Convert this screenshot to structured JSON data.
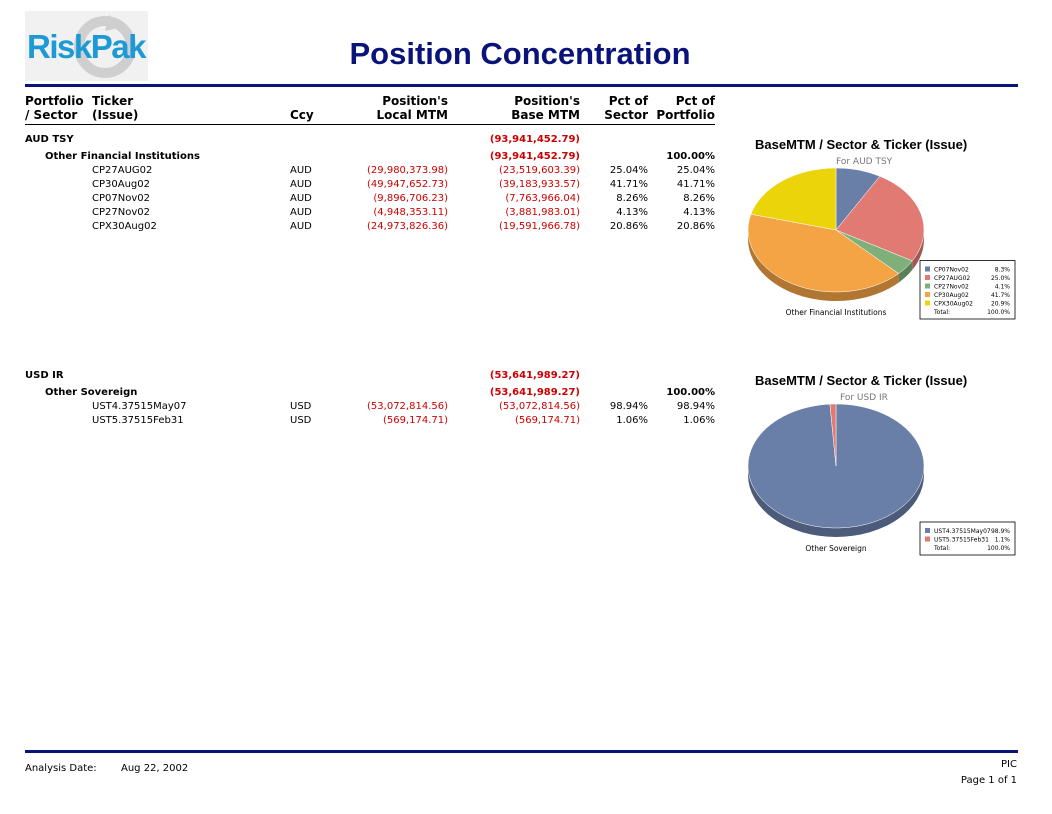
{
  "logo": {
    "text": "RiskPak"
  },
  "title": "Position Concentration",
  "headers": {
    "portfolio_1": "Portfolio",
    "portfolio_2": "/ Sector",
    "ticker_1": "Ticker",
    "ticker_2": "(Issue)",
    "ccy": "Ccy",
    "local_1": "Position's",
    "local_2": "Local MTM",
    "base_1": "Position's",
    "base_2": "Base MTM",
    "pct_sector_1": "Pct of",
    "pct_sector_2": "Sector",
    "pct_portfolio_1": "Pct of",
    "pct_portfolio_2": "Portfolio"
  },
  "groups": [
    {
      "portfolio": "AUD TSY",
      "base_total": "(93,941,452.79)",
      "sector": "Other Financial Institutions",
      "sector_base": "(93,941,452.79)",
      "sector_pct_portfolio": "100.00%",
      "rows": [
        {
          "ticker": "CP27AUG02",
          "ccy": "AUD",
          "local": "(29,980,373.98)",
          "base": "(23,519,603.39)",
          "pct_sector": "25.04%",
          "pct_portfolio": "25.04%"
        },
        {
          "ticker": "CP30Aug02",
          "ccy": "AUD",
          "local": "(49,947,652.73)",
          "base": "(39,183,933.57)",
          "pct_sector": "41.71%",
          "pct_portfolio": "41.71%"
        },
        {
          "ticker": "CP07Nov02",
          "ccy": "AUD",
          "local": "(9,896,706.23)",
          "base": "(7,763,966.04)",
          "pct_sector": "8.26%",
          "pct_portfolio": "8.26%"
        },
        {
          "ticker": "CP27Nov02",
          "ccy": "AUD",
          "local": "(4,948,353.11)",
          "base": "(3,881,983.01)",
          "pct_sector": "4.13%",
          "pct_portfolio": "4.13%"
        },
        {
          "ticker": "CPX30Aug02",
          "ccy": "AUD",
          "local": "(24,973,826.36)",
          "base": "(19,591,966.78)",
          "pct_sector": "20.86%",
          "pct_portfolio": "20.86%"
        }
      ]
    },
    {
      "portfolio": "USD IR",
      "base_total": "(53,641,989.27)",
      "sector": "Other Sovereign",
      "sector_base": "(53,641,989.27)",
      "sector_pct_portfolio": "100.00%",
      "rows": [
        {
          "ticker": "UST4.37515May07",
          "ccy": "USD",
          "local": "(53,072,814.56)",
          "base": "(53,072,814.56)",
          "pct_sector": "98.94%",
          "pct_portfolio": "98.94%"
        },
        {
          "ticker": "UST5.37515Feb31",
          "ccy": "USD",
          "local": "(569,174.71)",
          "base": "(569,174.71)",
          "pct_sector": "1.06%",
          "pct_portfolio": "1.06%"
        }
      ]
    }
  ],
  "chart_data": [
    {
      "type": "pie",
      "title": "BaseMTM / Sector & Ticker (Issue)",
      "subtitle": "For AUD TSY",
      "label": "Other Financial Institutions",
      "slices": [
        {
          "name": "CP07Nov02",
          "value": 8.3,
          "display": "8.3%",
          "color": "#6a7fa8"
        },
        {
          "name": "CP27AUG02",
          "value": 25.0,
          "display": "25.0%",
          "color": "#e07a72"
        },
        {
          "name": "CP27Nov02",
          "value": 4.1,
          "display": "4.1%",
          "color": "#7fb07a"
        },
        {
          "name": "CP30Aug02",
          "value": 41.7,
          "display": "41.7%",
          "color": "#f5a445"
        },
        {
          "name": "CPX30Aug02",
          "value": 20.9,
          "display": "20.9%",
          "color": "#ecd40a"
        }
      ],
      "total_label": "Total:",
      "total_value": "100.0%"
    },
    {
      "type": "pie",
      "title": "BaseMTM / Sector & Ticker (Issue)",
      "subtitle": "For USD IR",
      "label": "Other Sovereign",
      "slices": [
        {
          "name": "UST4.37515May07",
          "value": 98.9,
          "display": "98.9%",
          "color": "#6a7fa8"
        },
        {
          "name": "UST5.37515Feb31",
          "value": 1.1,
          "display": "1.1%",
          "color": "#e07a72"
        }
      ],
      "total_label": "Total:",
      "total_value": "100.0%"
    }
  ],
  "footer": {
    "analysis_label": "Analysis Date:",
    "analysis_date": "Aug 22, 2002",
    "code": "PIC",
    "page": "Page 1 of 1"
  },
  "colors": {
    "brand": "#0a137a",
    "negative": "#cc0000",
    "logo": "#1d9ad6"
  }
}
